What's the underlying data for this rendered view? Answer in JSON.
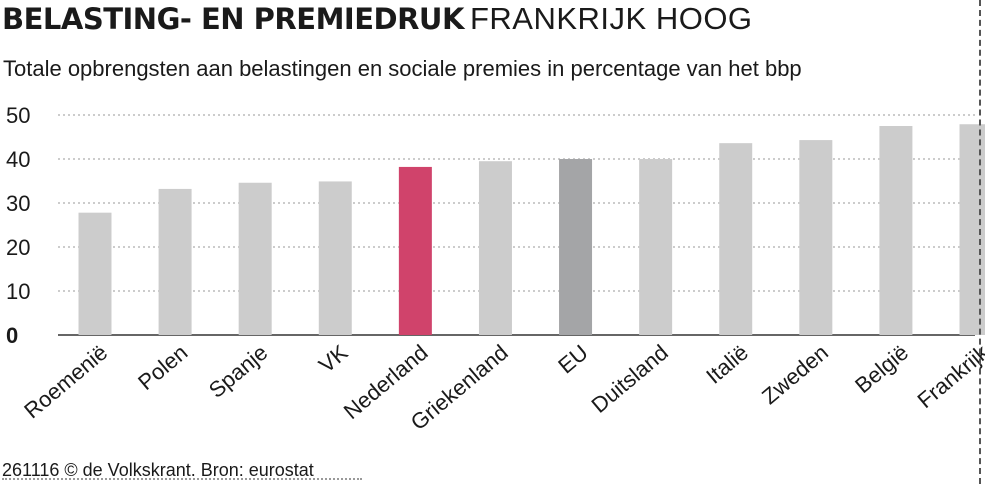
{
  "title_bold": "BELASTING- EN PREMIEDRUK",
  "title_light": "FRANKRIJK HOOG",
  "subtitle": "Totale opbrengsten aan belastingen en sociale premies in percentage van het bbp",
  "footer": "261116 © de Volkskrant. Bron: eurostat",
  "colors": {
    "bar_default": "#cccccc",
    "bar_highlight": "#d0436b",
    "bar_eu": "#a4a5a7",
    "grid": "#9a9a9a",
    "axis": "#333333"
  },
  "chart_data": {
    "type": "bar",
    "title": "BELASTING- EN PREMIEDRUK FRANKRIJK HOOG",
    "subtitle": "Totale opbrengsten aan belastingen en sociale premies in percentage van het bbp",
    "categories": [
      "Roemenië",
      "Polen",
      "Spanje",
      "VK",
      "Nederland",
      "Griekenland",
      "EU",
      "Duitsland",
      "Italië",
      "Zweden",
      "België",
      "Frankrijk"
    ],
    "values": [
      27.8,
      33.2,
      34.6,
      34.9,
      38.2,
      39.5,
      40.0,
      40.0,
      43.6,
      44.3,
      47.5,
      47.9
    ],
    "highlight": {
      "Nederland": "highlight",
      "EU": "eu"
    },
    "yticks": [
      0,
      10,
      20,
      30,
      40,
      50
    ],
    "ylim": [
      0,
      50
    ],
    "grid": true,
    "xlabel": "",
    "ylabel": ""
  }
}
